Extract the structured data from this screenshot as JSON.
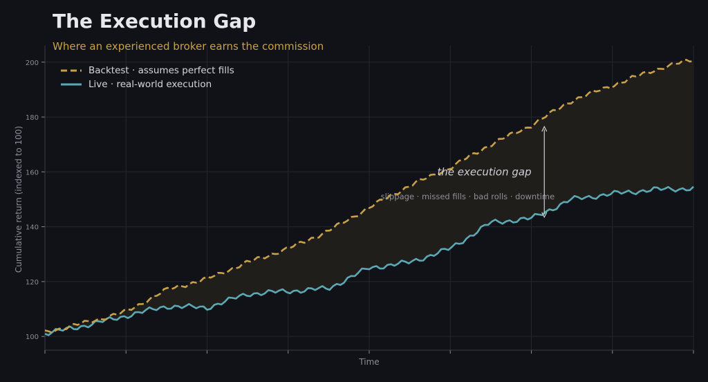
{
  "colors": {
    "background": "#111217",
    "grid": "#25272e",
    "axis_text": "#8b8d96",
    "backtest": "#c9a14a",
    "live": "#5aa9b5",
    "gap_fill": "#201e1b",
    "annotation": "#cfcfd4"
  },
  "chart_data": {
    "type": "line",
    "title": "The Execution Gap",
    "subtitle": "Where an experienced broker earns the commission",
    "xlabel": "Time",
    "ylabel": "Cumulative return (indexed to 100)",
    "xlim": [
      0,
      1
    ],
    "ylim": [
      95,
      206
    ],
    "yticks": [
      100,
      120,
      140,
      160,
      180,
      200
    ],
    "grid": true,
    "legend_placement": "top-left",
    "x": [
      0,
      0.0625,
      0.125,
      0.1875,
      0.25,
      0.3125,
      0.375,
      0.4375,
      0.5,
      0.5625,
      0.625,
      0.6875,
      0.75,
      0.8125,
      0.875,
      0.9375,
      1
    ],
    "series": [
      {
        "name": "Backtest · assumes perfect fills",
        "style": "dashed",
        "values": [
          101.5,
          105,
          109,
          117,
          121,
          127,
          132,
          138.5,
          147,
          155,
          161.5,
          170,
          177,
          186,
          191.5,
          197,
          201
        ]
      },
      {
        "name": "Live · real-world execution",
        "style": "solid",
        "values": [
          101,
          104,
          107.5,
          111,
          110.5,
          115.5,
          116.5,
          117.5,
          125,
          127,
          132,
          141.5,
          143,
          150,
          152,
          153.5,
          154
        ]
      }
    ],
    "annotations": [
      {
        "text": "the execution gap",
        "x": 0.75,
        "y": 160,
        "style": "italic"
      },
      {
        "text": "slippage · missed fills · bad rolls · downtime",
        "x": 0.655,
        "y": 151
      }
    ],
    "gap_arrow": {
      "x": 0.77,
      "y_from": 143.5,
      "y_to": 176.5
    }
  }
}
